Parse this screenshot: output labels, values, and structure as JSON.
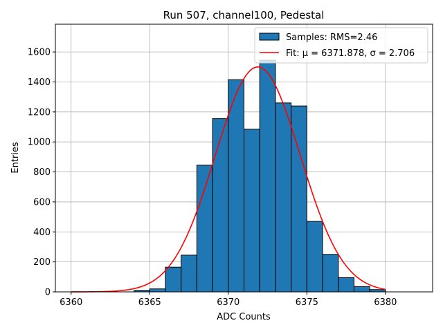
{
  "chart_data": {
    "type": "bar",
    "title": "Run 507, channel100, Pedestal",
    "xlabel": "ADC Counts",
    "ylabel": "Entries",
    "xlim": [
      6359,
      6383
    ],
    "ylim": [
      0,
      1785
    ],
    "grid": true,
    "x_ticks": [
      6360,
      6365,
      6370,
      6375,
      6380
    ],
    "x_tick_labels": [
      "6360",
      "6365",
      "6370",
      "6375",
      "6380"
    ],
    "y_ticks": [
      0,
      200,
      400,
      600,
      800,
      1000,
      1200,
      1400,
      1600
    ],
    "y_tick_labels": [
      "0",
      "200",
      "400",
      "600",
      "800",
      "1000",
      "1200",
      "1400",
      "1600"
    ],
    "bin_width": 1,
    "bin_edges": [
      6364,
      6365,
      6366,
      6367,
      6368,
      6369,
      6370,
      6371,
      6372,
      6373,
      6374,
      6375,
      6376,
      6377,
      6378,
      6379
    ],
    "values": [
      10,
      20,
      165,
      245,
      845,
      1155,
      1415,
      1085,
      1545,
      1260,
      1240,
      470,
      250,
      95,
      35,
      15
    ],
    "fit": {
      "mu": 6371.878,
      "sigma": 2.706,
      "amplitude": 1500,
      "x_range": [
        6360,
        6380
      ]
    },
    "legend": {
      "placement": "top-right",
      "entries": [
        {
          "name": "Samples: RMS=2.46",
          "kind": "bar"
        },
        {
          "name": "Fit: μ = 6371.878, σ = 2.706",
          "kind": "line"
        }
      ]
    },
    "colors": {
      "bar": "#1f77b4",
      "edge": "#000000",
      "fit": "#ff0000",
      "grid": "#b0b0b0"
    }
  }
}
